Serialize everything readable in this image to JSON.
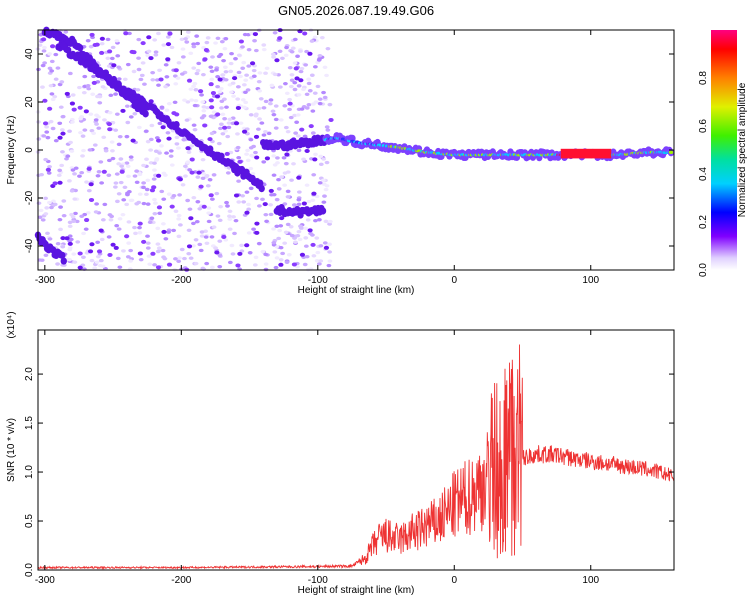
{
  "title": "GN05.2026.087.19.49.G06",
  "chart_data": [
    {
      "type": "heatmap",
      "xlabel": "Height of straight line (km)",
      "ylabel": "Frequency (Hz)",
      "xlim": [
        -305,
        161
      ],
      "ylim": [
        -50,
        50
      ],
      "xticks": [
        "-300",
        "-200",
        "-100",
        "0",
        "100"
      ],
      "yticks": [
        "-40",
        "-20",
        "0",
        "20",
        "40"
      ],
      "colorbar": {
        "label": "Normalized spectral amplitude",
        "range": [
          0.0,
          1.0
        ],
        "ticks": [
          "0.0",
          "0.2",
          "0.4",
          "0.6",
          "0.8"
        ]
      },
      "ridges": [
        {
          "points": [
            [
              -300,
              50
            ],
            [
              -280,
              45
            ],
            [
              -260,
              33
            ],
            [
              -240,
              24
            ],
            [
              -220,
              17
            ],
            [
              -200,
              8
            ],
            [
              -180,
              0
            ],
            [
              -160,
              -8
            ],
            [
              -150,
              -11
            ],
            [
              -140,
              -16
            ]
          ]
        },
        {
          "points": [
            [
              -290,
              44
            ],
            [
              -270,
              36
            ],
            [
              -255,
              30
            ],
            [
              -240,
              22
            ],
            [
              -225,
              15
            ]
          ]
        },
        {
          "points": [
            [
              -140,
              2
            ],
            [
              -120,
              2
            ],
            [
              -100,
              4
            ],
            [
              -85,
              5
            ],
            [
              -70,
              3
            ],
            [
              -55,
              2
            ],
            [
              -40,
              1
            ],
            [
              -20,
              -1
            ],
            [
              0,
              -2
            ],
            [
              20,
              -2
            ],
            [
              40,
              -2
            ],
            [
              60,
              -2
            ],
            [
              75,
              -2
            ],
            [
              90,
              -2
            ],
            [
              120,
              -2
            ],
            [
              140,
              -1
            ],
            [
              160,
              -1
            ]
          ]
        },
        {
          "points": [
            [
              -130,
              -25
            ],
            [
              -115,
              -26
            ],
            [
              -95,
              -25
            ]
          ]
        },
        {
          "points": [
            [
              -305,
              -36
            ],
            [
              -295,
              -42
            ],
            [
              -285,
              -46
            ]
          ]
        }
      ]
    },
    {
      "type": "line",
      "xlabel": "Height of straight line (km)",
      "ylabel": "SNR (10 * v/v)",
      "y_multiplier": "(x10⁴)",
      "xlim": [
        -305,
        161
      ],
      "ylim": [
        0,
        24500
      ],
      "xticks": [
        "-300",
        "-200",
        "-100",
        "0",
        "100"
      ],
      "yticks": [
        "0.0",
        "0.5",
        "1.0",
        "1.5",
        "2.0"
      ],
      "color": "#ee3333",
      "series": [
        {
          "x": [
            -305,
            -250,
            -200,
            -150,
            -100,
            -75,
            -65,
            -60,
            -55,
            -50,
            -45,
            -40,
            -35,
            -30,
            -25,
            -20,
            -15,
            -10,
            -5,
            0,
            5,
            10,
            15,
            20,
            25,
            30,
            35,
            40,
            45,
            50,
            55,
            60,
            70,
            80,
            90,
            100,
            110,
            120,
            130,
            140,
            150,
            161
          ],
          "y": [
            250,
            250,
            250,
            300,
            350,
            400,
            1200,
            2400,
            3200,
            3500,
            3200,
            3100,
            3400,
            3900,
            4000,
            4600,
            4700,
            5200,
            5800,
            6600,
            7000,
            7400,
            8000,
            8600,
            9500,
            10300,
            11000,
            11500,
            11200,
            11400,
            11600,
            11800,
            11800,
            11600,
            11300,
            11100,
            10900,
            10700,
            10500,
            10300,
            10000,
            9500
          ]
        }
      ]
    }
  ]
}
